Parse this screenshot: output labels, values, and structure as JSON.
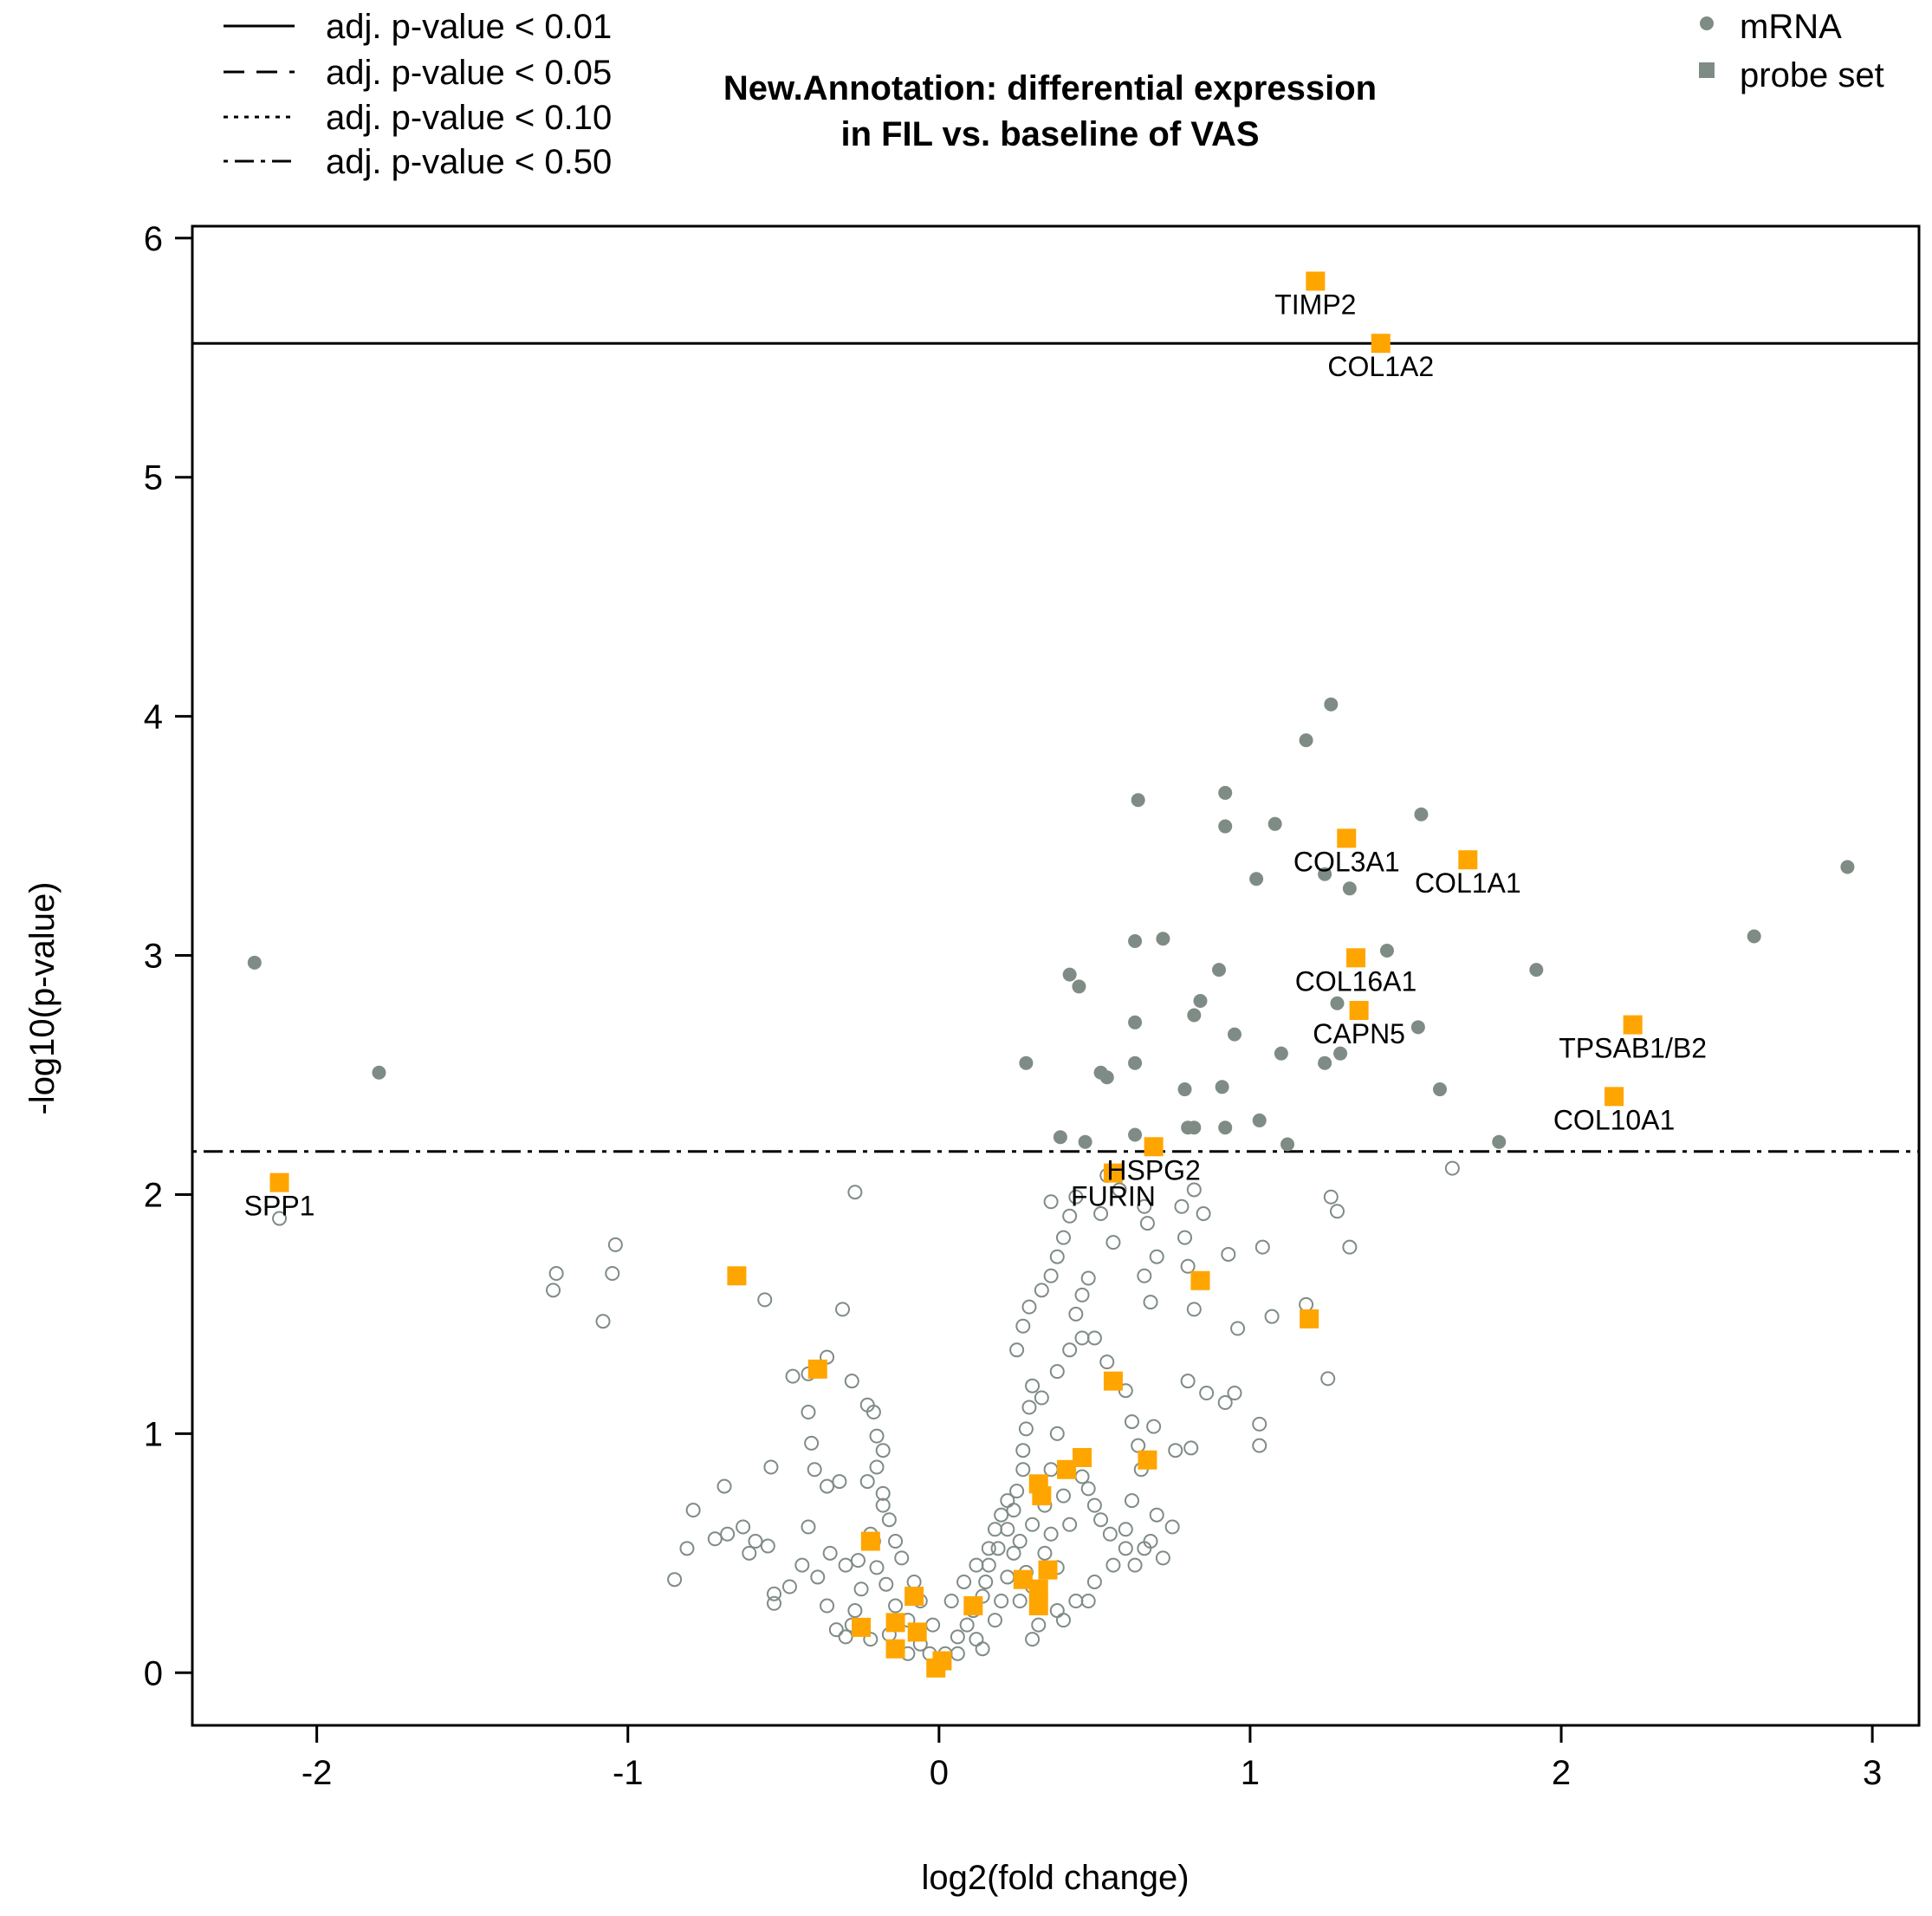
{
  "chart_data": {
    "type": "scatter",
    "title_lines": [
      "New.Annotation: differential expression",
      "in FIL vs. baseline of VAS"
    ],
    "xlabel": "log2(fold change)",
    "ylabel": "-log10(p-value)",
    "xlim": [
      -2.4,
      3.15
    ],
    "ylim": [
      -0.22,
      6.05
    ],
    "x_ticks": [
      -2,
      -1,
      0,
      1,
      2,
      3
    ],
    "y_ticks": [
      0,
      1,
      2,
      3,
      4,
      5,
      6
    ],
    "legend_lines": [
      {
        "label": "adj. p-value < 0.01",
        "style": "solid"
      },
      {
        "label": "adj. p-value < 0.05",
        "style": "dashed"
      },
      {
        "label": "adj. p-value < 0.10",
        "style": "dotted"
      },
      {
        "label": "adj. p-value < 0.50",
        "style": "dotdash"
      }
    ],
    "legend_markers": [
      {
        "label": "mRNA",
        "marker": "circle"
      },
      {
        "label": "probe set",
        "marker": "square"
      }
    ],
    "thresholds": [
      {
        "name": "adj. p-value < 0.01",
        "y": 5.56,
        "style": "solid"
      },
      {
        "name": "adj. p-value < 0.50",
        "y": 2.18,
        "style": "dotdash"
      }
    ],
    "colors": {
      "mrna": "#7f8c86",
      "probe": "#ffa500",
      "axis": "#000000"
    },
    "significant_mrna": [
      [
        -2.2,
        2.97
      ],
      [
        -1.8,
        2.51
      ],
      [
        1.26,
        4.05
      ],
      [
        1.18,
        3.9
      ],
      [
        0.64,
        3.65
      ],
      [
        0.92,
        3.68
      ],
      [
        1.08,
        3.55
      ],
      [
        0.92,
        3.54
      ],
      [
        1.55,
        3.59
      ],
      [
        1.02,
        3.32
      ],
      [
        1.24,
        3.34
      ],
      [
        1.32,
        3.28
      ],
      [
        2.92,
        3.37
      ],
      [
        0.72,
        3.07
      ],
      [
        0.63,
        3.06
      ],
      [
        1.44,
        3.02
      ],
      [
        2.62,
        3.08
      ],
      [
        0.9,
        2.94
      ],
      [
        0.42,
        2.92
      ],
      [
        0.45,
        2.87
      ],
      [
        1.92,
        2.94
      ],
      [
        0.84,
        2.81
      ],
      [
        1.28,
        2.8
      ],
      [
        0.63,
        2.72
      ],
      [
        0.82,
        2.75
      ],
      [
        1.54,
        2.7
      ],
      [
        0.95,
        2.67
      ],
      [
        1.1,
        2.59
      ],
      [
        1.29,
        2.59
      ],
      [
        0.28,
        2.55
      ],
      [
        0.63,
        2.55
      ],
      [
        1.24,
        2.55
      ],
      [
        0.52,
        2.51
      ],
      [
        0.54,
        2.49
      ],
      [
        0.91,
        2.45
      ],
      [
        0.79,
        2.44
      ],
      [
        1.61,
        2.44
      ],
      [
        1.03,
        2.31
      ],
      [
        0.8,
        2.28
      ],
      [
        0.82,
        2.28
      ],
      [
        0.92,
        2.28
      ],
      [
        0.39,
        2.24
      ],
      [
        0.47,
        2.22
      ],
      [
        0.63,
        2.25
      ],
      [
        1.12,
        2.21
      ],
      [
        1.8,
        2.22
      ]
    ],
    "nonsignificant_mrna": [
      [
        -2.12,
        1.9
      ],
      [
        -0.27,
        2.01
      ],
      [
        1.65,
        2.11
      ],
      [
        -1.23,
        1.67
      ],
      [
        -1.24,
        1.6
      ],
      [
        -1.04,
        1.79
      ],
      [
        -1.05,
        1.67
      ],
      [
        -1.08,
        1.47
      ],
      [
        -0.56,
        1.56
      ],
      [
        -0.31,
        1.52
      ],
      [
        -0.36,
        1.32
      ],
      [
        -0.47,
        1.24
      ],
      [
        -0.42,
        1.25
      ],
      [
        -0.28,
        1.22
      ],
      [
        -0.23,
        1.12
      ],
      [
        -0.21,
        1.09
      ],
      [
        -0.42,
        1.09
      ],
      [
        -0.41,
        0.96
      ],
      [
        -0.2,
        0.99
      ],
      [
        -0.18,
        0.93
      ],
      [
        -0.4,
        0.85
      ],
      [
        -0.54,
        0.86
      ],
      [
        -0.32,
        0.8
      ],
      [
        -0.23,
        0.8
      ],
      [
        -0.18,
        0.7
      ],
      [
        -0.69,
        0.78
      ],
      [
        -0.36,
        0.78
      ],
      [
        -0.79,
        0.68
      ],
      [
        -0.63,
        0.61
      ],
      [
        -0.55,
        0.53
      ],
      [
        -0.42,
        0.61
      ],
      [
        -0.81,
        0.52
      ],
      [
        -0.72,
        0.56
      ],
      [
        -0.68,
        0.58
      ],
      [
        -0.61,
        0.5
      ],
      [
        -0.59,
        0.55
      ],
      [
        -0.3,
        0.45
      ],
      [
        -0.26,
        0.47
      ],
      [
        -0.21,
        0.55
      ],
      [
        -0.35,
        0.5
      ],
      [
        -0.44,
        0.45
      ],
      [
        -0.39,
        0.4
      ],
      [
        -0.48,
        0.36
      ],
      [
        -0.85,
        0.39
      ],
      [
        -0.53,
        0.33
      ],
      [
        -0.53,
        0.29
      ],
      [
        -0.36,
        0.28
      ],
      [
        -0.2,
        0.44
      ],
      [
        -0.12,
        0.48
      ],
      [
        -0.17,
        0.37
      ],
      [
        -0.14,
        0.28
      ],
      [
        -0.1,
        0.22
      ],
      [
        -0.28,
        0.2
      ],
      [
        -0.22,
        0.14
      ],
      [
        -0.3,
        0.15
      ],
      [
        -0.33,
        0.18
      ],
      [
        -0.06,
        0.12
      ],
      [
        -0.03,
        0.08
      ],
      [
        0.02,
        0.08
      ],
      [
        0.06,
        0.15
      ],
      [
        0.09,
        0.2
      ],
      [
        0.11,
        0.26
      ],
      [
        0.14,
        0.32
      ],
      [
        0.15,
        0.38
      ],
      [
        0.16,
        0.45
      ],
      [
        0.19,
        0.52
      ],
      [
        0.22,
        0.6
      ],
      [
        0.24,
        0.68
      ],
      [
        0.25,
        0.76
      ],
      [
        0.27,
        0.85
      ],
      [
        0.27,
        0.93
      ],
      [
        0.28,
        1.02
      ],
      [
        0.29,
        1.11
      ],
      [
        0.3,
        1.2
      ],
      [
        0.2,
        0.3
      ],
      [
        0.22,
        0.4
      ],
      [
        0.24,
        0.5
      ],
      [
        0.26,
        0.55
      ],
      [
        0.3,
        0.62
      ],
      [
        0.34,
        0.7
      ],
      [
        0.36,
        0.85
      ],
      [
        0.38,
        1.0
      ],
      [
        0.33,
        1.15
      ],
      [
        0.38,
        1.26
      ],
      [
        0.42,
        1.35
      ],
      [
        0.46,
        1.4
      ],
      [
        0.25,
        1.35
      ],
      [
        0.27,
        1.45
      ],
      [
        0.29,
        1.53
      ],
      [
        0.33,
        1.6
      ],
      [
        0.36,
        1.66
      ],
      [
        0.38,
        1.74
      ],
      [
        0.4,
        1.82
      ],
      [
        0.42,
        1.91
      ],
      [
        0.44,
        1.99
      ],
      [
        0.36,
        1.97
      ],
      [
        0.52,
        1.92
      ],
      [
        0.56,
        1.8
      ],
      [
        0.48,
        1.65
      ],
      [
        0.46,
        1.58
      ],
      [
        0.44,
        1.5
      ],
      [
        0.5,
        1.4
      ],
      [
        0.54,
        1.3
      ],
      [
        0.6,
        1.18
      ],
      [
        0.62,
        1.05
      ],
      [
        0.64,
        0.95
      ],
      [
        0.65,
        0.85
      ],
      [
        0.62,
        0.72
      ],
      [
        0.6,
        0.6
      ],
      [
        0.66,
        0.52
      ],
      [
        0.56,
        0.45
      ],
      [
        0.5,
        0.38
      ],
      [
        0.44,
        0.3
      ],
      [
        0.38,
        0.26
      ],
      [
        0.32,
        0.2
      ],
      [
        0.3,
        0.14
      ],
      [
        0.54,
        2.08
      ],
      [
        0.58,
        2.02
      ],
      [
        0.66,
        1.95
      ],
      [
        0.67,
        1.88
      ],
      [
        0.7,
        1.74
      ],
      [
        0.66,
        1.66
      ],
      [
        0.68,
        1.55
      ],
      [
        0.78,
        1.95
      ],
      [
        0.79,
        1.82
      ],
      [
        0.82,
        2.02
      ],
      [
        0.85,
        1.92
      ],
      [
        0.8,
        1.7
      ],
      [
        0.82,
        1.52
      ],
      [
        0.93,
        1.75
      ],
      [
        1.04,
        1.78
      ],
      [
        1.26,
        1.99
      ],
      [
        1.28,
        1.93
      ],
      [
        1.32,
        1.78
      ],
      [
        0.96,
        1.44
      ],
      [
        1.07,
        1.49
      ],
      [
        1.18,
        1.54
      ],
      [
        0.8,
        1.22
      ],
      [
        0.86,
        1.17
      ],
      [
        0.92,
        1.13
      ],
      [
        0.95,
        1.17
      ],
      [
        1.03,
        1.04
      ],
      [
        1.03,
        0.95
      ],
      [
        0.81,
        0.94
      ],
      [
        0.76,
        0.93
      ],
      [
        0.69,
        1.03
      ],
      [
        1.25,
        1.23
      ],
      [
        0.75,
        0.61
      ],
      [
        0.7,
        0.66
      ],
      [
        0.68,
        0.55
      ],
      [
        0.72,
        0.48
      ],
      [
        0.63,
        0.45
      ],
      [
        0.6,
        0.52
      ],
      [
        0.55,
        0.58
      ],
      [
        0.52,
        0.64
      ],
      [
        0.5,
        0.7
      ],
      [
        0.48,
        0.77
      ],
      [
        0.46,
        0.82
      ],
      [
        -0.06,
        0.3
      ],
      [
        -0.02,
        0.2
      ],
      [
        0.04,
        0.3
      ],
      [
        0.08,
        0.38
      ],
      [
        0.12,
        0.45
      ],
      [
        0.16,
        0.52
      ],
      [
        0.18,
        0.6
      ],
      [
        0.2,
        0.66
      ],
      [
        0.22,
        0.72
      ],
      [
        0.12,
        0.14
      ],
      [
        0.18,
        0.22
      ],
      [
        0.06,
        0.08
      ],
      [
        0.4,
        0.22
      ],
      [
        0.48,
        0.3
      ],
      [
        0.38,
        0.44
      ],
      [
        0.36,
        0.58
      ],
      [
        0.34,
        0.5
      ],
      [
        0.3,
        0.36
      ],
      [
        0.42,
        0.62
      ],
      [
        0.4,
        0.74
      ],
      [
        0.28,
        0.42
      ],
      [
        0.26,
        0.3
      ],
      [
        0.14,
        0.1
      ],
      [
        -0.08,
        0.38
      ],
      [
        -0.14,
        0.55
      ],
      [
        -0.16,
        0.64
      ],
      [
        -0.18,
        0.75
      ],
      [
        -0.2,
        0.86
      ],
      [
        -0.22,
        0.58
      ],
      [
        -0.25,
        0.35
      ],
      [
        -0.27,
        0.26
      ],
      [
        -0.16,
        0.16
      ],
      [
        -0.1,
        0.08
      ],
      [
        0.0,
        0.04
      ]
    ],
    "probe_sets": [
      {
        "x": 1.21,
        "y": 5.82,
        "label": "TIMP2"
      },
      {
        "x": 1.42,
        "y": 5.56,
        "label": "COL1A2"
      },
      {
        "x": 1.31,
        "y": 3.49,
        "label": "COL3A1"
      },
      {
        "x": 1.7,
        "y": 3.4,
        "label": "COL1A1"
      },
      {
        "x": 1.34,
        "y": 2.99,
        "label": "COL16A1"
      },
      {
        "x": 1.35,
        "y": 2.77,
        "label": "CAPN5"
      },
      {
        "x": 2.23,
        "y": 2.71,
        "label": "TPSAB1/B2"
      },
      {
        "x": 2.17,
        "y": 2.41,
        "label": "COL10A1"
      },
      {
        "x": 0.69,
        "y": 2.2,
        "label": "HSPG2"
      },
      {
        "x": 0.56,
        "y": 2.09,
        "label": "FURIN"
      },
      {
        "x": -2.12,
        "y": 2.05,
        "label": "SPP1"
      },
      {
        "x": -0.65,
        "y": 1.66,
        "label": ""
      },
      {
        "x": -0.39,
        "y": 1.27,
        "label": ""
      },
      {
        "x": 0.84,
        "y": 1.64,
        "label": ""
      },
      {
        "x": 1.19,
        "y": 1.48,
        "label": ""
      },
      {
        "x": 0.56,
        "y": 1.22,
        "label": ""
      },
      {
        "x": 0.67,
        "y": 0.89,
        "label": ""
      },
      {
        "x": 0.46,
        "y": 0.9,
        "label": ""
      },
      {
        "x": 0.41,
        "y": 0.85,
        "label": ""
      },
      {
        "x": 0.32,
        "y": 0.79,
        "label": ""
      },
      {
        "x": 0.33,
        "y": 0.74,
        "label": ""
      },
      {
        "x": -0.22,
        "y": 0.55,
        "label": ""
      },
      {
        "x": 0.35,
        "y": 0.43,
        "label": ""
      },
      {
        "x": 0.27,
        "y": 0.39,
        "label": ""
      },
      {
        "x": 0.32,
        "y": 0.35,
        "label": ""
      },
      {
        "x": 0.32,
        "y": 0.28,
        "label": ""
      },
      {
        "x": 0.11,
        "y": 0.28,
        "label": ""
      },
      {
        "x": -0.08,
        "y": 0.32,
        "label": ""
      },
      {
        "x": -0.25,
        "y": 0.19,
        "label": ""
      },
      {
        "x": -0.14,
        "y": 0.21,
        "label": ""
      },
      {
        "x": -0.07,
        "y": 0.17,
        "label": ""
      },
      {
        "x": -0.14,
        "y": 0.1,
        "label": ""
      },
      {
        "x": 0.01,
        "y": 0.05,
        "label": ""
      },
      {
        "x": -0.01,
        "y": 0.02,
        "label": ""
      }
    ]
  }
}
